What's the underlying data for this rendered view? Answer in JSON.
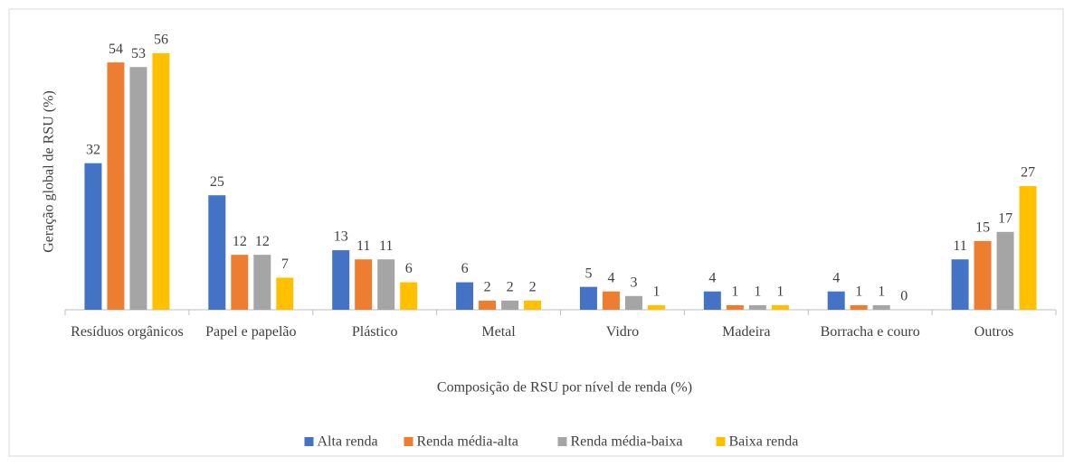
{
  "chart_data": {
    "type": "bar",
    "x_label": "Composição de RSU por nível de renda (%)",
    "y_label": "Geração global de RSU (%)",
    "categories": [
      "Resíduos orgânicos",
      "Papel e papelão",
      "Plástico",
      "Metal",
      "Vidro",
      "Madeira",
      "Borracha e couro",
      "Outros"
    ],
    "series": [
      {
        "name": "Alta renda",
        "color": "#4472c4",
        "values": [
          32,
          25,
          13,
          6,
          5,
          4,
          4,
          11
        ]
      },
      {
        "name": "Renda média-alta",
        "color": "#ed7d31",
        "values": [
          54,
          12,
          11,
          2,
          4,
          1,
          1,
          15
        ]
      },
      {
        "name": "Renda média-baixa",
        "color": "#a5a5a5",
        "values": [
          53,
          12,
          11,
          2,
          3,
          1,
          1,
          17
        ]
      },
      {
        "name": "Baixa renda",
        "color": "#ffc000",
        "values": [
          56,
          7,
          6,
          2,
          1,
          1,
          0,
          27
        ]
      }
    ],
    "legend": "bottom"
  }
}
